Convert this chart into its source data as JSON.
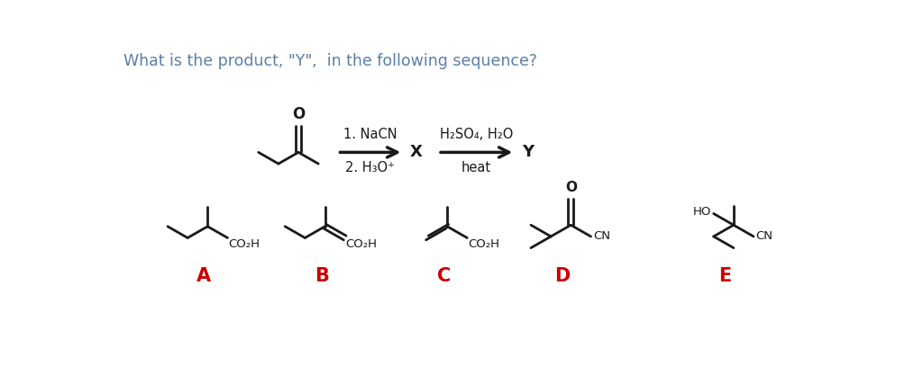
{
  "title_text": "What is the product, \"Y\",  in the following sequence?",
  "title_color": "#5a7fa8",
  "title_fontsize": 12.5,
  "background_color": "#ffffff",
  "label_colors": {
    "A": "#cc0000",
    "B": "#cc0000",
    "C": "#cc0000",
    "D": "#cc0000",
    "E": "#cc0000"
  },
  "label_fontsize": 15,
  "structure_color": "#1a1a1a",
  "reaction_text1": "1. NaCN",
  "reaction_text2": "2. H₃O⁺",
  "reaction_text3": "H₂SO₄, H₂O",
  "reaction_text4": "heat",
  "intermediate_X": "X",
  "product_Y": "Y",
  "seg": 0.33,
  "lw": 2.0
}
